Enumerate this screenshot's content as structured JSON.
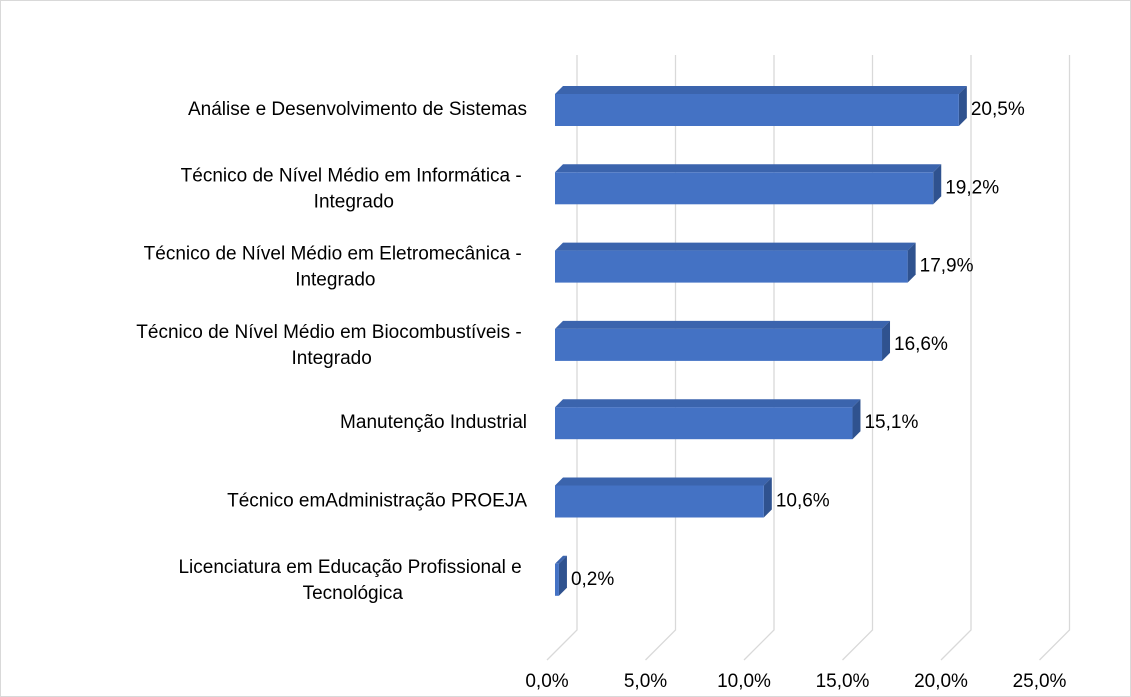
{
  "chart_data": {
    "type": "bar",
    "orientation": "horizontal",
    "three_d": true,
    "categories": [
      "Análise e Desenvolvimento de Sistemas",
      "Técnico de Nível Médio em Informática - Integrado",
      "Técnico de Nível Médio em Eletromecânica - Integrado",
      "Técnico de Nível Médio em Biocombustíveis - Integrado",
      "Manutenção Industrial",
      "Técnico emAdministração PROEJA",
      "Licenciatura em Educação Profissional e Tecnológica"
    ],
    "values": [
      20.5,
      19.2,
      17.9,
      16.6,
      15.1,
      10.6,
      0.2
    ],
    "value_labels": [
      "20,5%",
      "19,2%",
      "17,9%",
      "16,6%",
      "15,1%",
      "10,6%",
      "0,2%"
    ],
    "color": "#4472c4",
    "xlim": [
      0,
      25
    ],
    "xticks": [
      {
        "value": 0,
        "label": "0,0%"
      },
      {
        "value": 5,
        "label": "5,0%"
      },
      {
        "value": 10,
        "label": "10,0%"
      },
      {
        "value": 15,
        "label": "15,0%"
      },
      {
        "value": 20,
        "label": "20,0%"
      },
      {
        "value": 25,
        "label": "25,0%"
      }
    ],
    "grid": true
  }
}
